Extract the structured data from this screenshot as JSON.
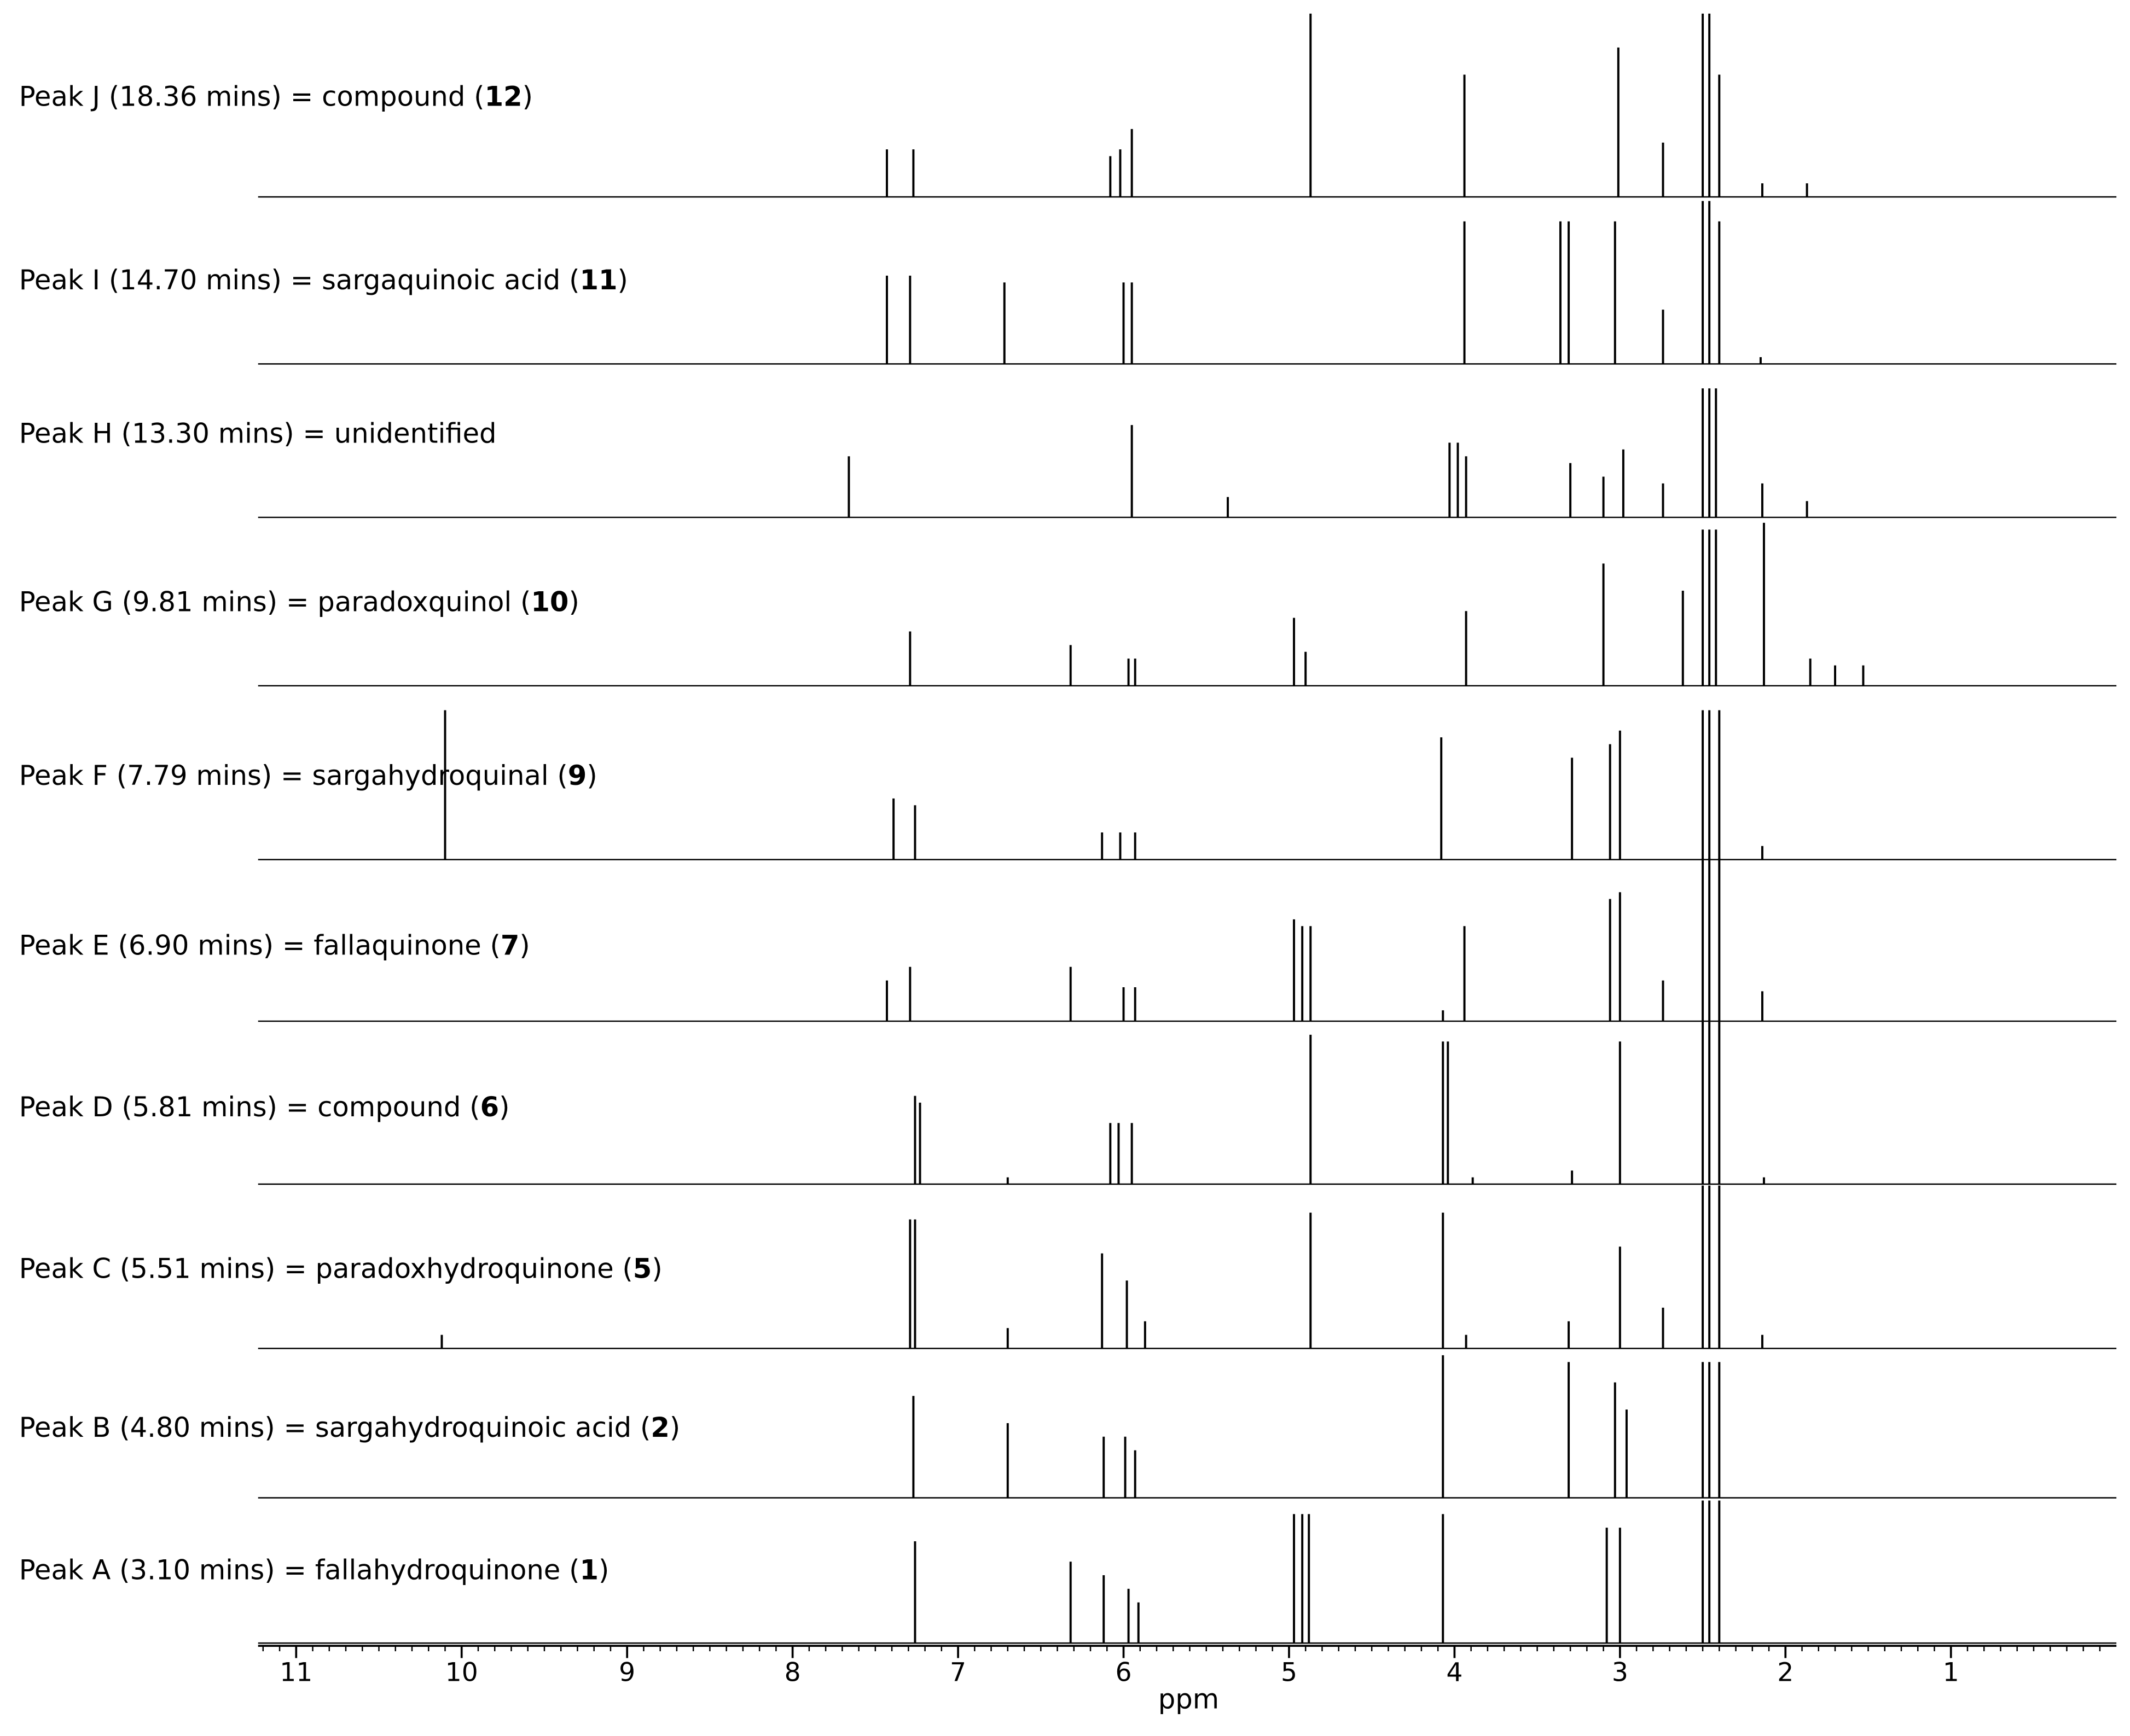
{
  "chart_data": {
    "type": "spectra",
    "x_label": "ppm",
    "color": "#000000",
    "xlim": [
      11.23,
      0.0
    ],
    "xticks": [
      11,
      10,
      9,
      8,
      7,
      6,
      5,
      4,
      3,
      2,
      1
    ],
    "series": [
      {
        "label": [
          "Peak J (18.36 mins) = compound (",
          "12",
          ")"
        ],
        "x": [
          7.43,
          7.27,
          6.08,
          6.02,
          5.95,
          4.87,
          3.94,
          3.01,
          2.74,
          2.5,
          2.46,
          2.4,
          2.14,
          1.87
        ],
        "values": [
          35,
          35,
          30,
          35,
          50,
          135,
          90,
          110,
          40,
          135,
          135,
          90,
          10,
          10
        ]
      },
      {
        "label": [
          "Peak I (14.70 mins) = sargaquinoic acid (",
          "11",
          ")"
        ],
        "x": [
          7.43,
          7.29,
          6.72,
          6.0,
          5.95,
          3.94,
          3.36,
          3.31,
          3.03,
          2.74,
          2.5,
          2.46,
          2.4,
          2.15
        ],
        "values": [
          65,
          65,
          60,
          60,
          60,
          105,
          105,
          105,
          105,
          40,
          120,
          120,
          105,
          5
        ]
      },
      {
        "label": [
          "Peak H (13.30 mins) = unidentified"
        ],
        "x": [
          7.66,
          5.95,
          5.37,
          4.03,
          3.98,
          3.93,
          3.3,
          3.1,
          2.98,
          2.74,
          2.5,
          2.46,
          2.42,
          2.14,
          1.87
        ],
        "values": [
          45,
          68,
          15,
          55,
          55,
          45,
          40,
          30,
          50,
          25,
          95,
          95,
          95,
          25,
          12
        ]
      },
      {
        "label": [
          "Peak G (9.81 mins) = paradoxquinol (",
          "10",
          ")"
        ],
        "x": [
          7.29,
          6.32,
          5.97,
          5.93,
          4.97,
          4.9,
          3.93,
          3.1,
          2.62,
          2.5,
          2.46,
          2.42,
          2.13,
          1.85,
          1.7,
          1.53
        ],
        "values": [
          40,
          30,
          20,
          20,
          50,
          25,
          55,
          90,
          70,
          115,
          115,
          115,
          120,
          20,
          15,
          15
        ]
      },
      {
        "label": [
          "Peak F (7.79 mins) = sargahydroquinal (",
          "9",
          ")"
        ],
        "x": [
          10.1,
          7.39,
          7.26,
          6.13,
          6.02,
          5.93,
          4.08,
          3.29,
          3.06,
          3.0,
          2.5,
          2.46,
          2.4,
          2.14
        ],
        "values": [
          110,
          45,
          40,
          20,
          20,
          20,
          90,
          75,
          85,
          95,
          110,
          110,
          110,
          10
        ]
      },
      {
        "label": [
          "Peak E (6.90 mins) = fallaquinone (",
          "7",
          ")"
        ],
        "x": [
          7.43,
          7.29,
          6.32,
          6.0,
          5.93,
          4.97,
          4.92,
          4.87,
          4.07,
          3.94,
          3.06,
          3.0,
          2.74,
          2.5,
          2.46,
          2.4,
          2.14
        ],
        "values": [
          30,
          40,
          40,
          25,
          25,
          75,
          70,
          70,
          8,
          70,
          90,
          95,
          30,
          120,
          120,
          120,
          22
        ]
      },
      {
        "label": [
          "Peak D (5.81 mins) = compound (",
          "6",
          ")"
        ],
        "x": [
          7.26,
          7.23,
          6.7,
          6.08,
          6.03,
          5.95,
          4.87,
          4.07,
          4.04,
          3.89,
          3.29,
          3.0,
          2.5,
          2.46,
          2.4,
          2.13
        ],
        "values": [
          65,
          60,
          5,
          45,
          45,
          45,
          110,
          105,
          105,
          5,
          10,
          105,
          120,
          120,
          120,
          5
        ]
      },
      {
        "label": [
          "Peak C (5.51 mins) = paradoxhydroquinone (",
          "5",
          ")"
        ],
        "x": [
          10.12,
          7.29,
          7.26,
          6.7,
          6.13,
          5.98,
          5.87,
          4.87,
          4.07,
          3.93,
          3.31,
          3.0,
          2.74,
          2.5,
          2.46,
          2.4,
          2.14
        ],
        "values": [
          10,
          95,
          95,
          15,
          70,
          50,
          20,
          100,
          100,
          10,
          20,
          75,
          30,
          120,
          120,
          120,
          10
        ]
      },
      {
        "label": [
          "Peak B (4.80 mins) = sargahydroquinoic acid (",
          "2",
          ")"
        ],
        "x": [
          7.27,
          6.7,
          6.12,
          5.99,
          5.93,
          4.07,
          3.31,
          3.03,
          2.96,
          2.5,
          2.46,
          2.4
        ],
        "values": [
          75,
          55,
          45,
          45,
          35,
          105,
          100,
          85,
          65,
          100,
          100,
          100
        ]
      },
      {
        "label": [
          "Peak A (3.10 mins) = fallahydroquinone (",
          "1",
          ")"
        ],
        "x": [
          7.26,
          6.32,
          6.12,
          5.97,
          5.91,
          4.97,
          4.92,
          4.88,
          4.07,
          3.08,
          3.0,
          2.5,
          2.46,
          2.4
        ],
        "values": [
          75,
          60,
          50,
          40,
          30,
          95,
          95,
          95,
          95,
          85,
          85,
          105,
          105,
          105
        ]
      }
    ]
  }
}
